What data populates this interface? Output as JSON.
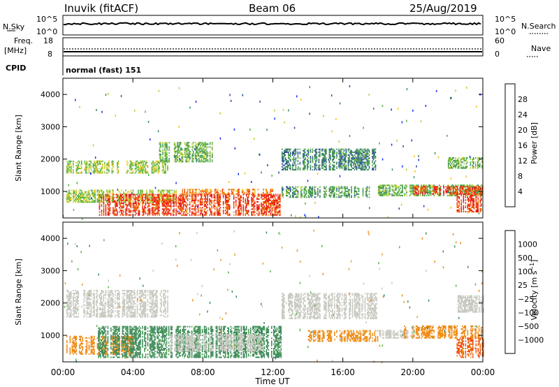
{
  "header": {
    "station": "Inuvik (fitACF)",
    "beam": "Beam 06",
    "date": "25/Aug/2019"
  },
  "noise_panel": {
    "left_label": "N.Sky",
    "left_ticks": [
      "10^5",
      "10^0"
    ],
    "right_label": "N.Search",
    "right_ticks": [
      "10^5",
      "10^0"
    ]
  },
  "freq_panel": {
    "left_label_line1": "Freq.",
    "left_label_line2": "[MHz]",
    "left_ticks": [
      "18",
      "8"
    ],
    "right_label": "Nave",
    "right_ticks": [
      "60",
      "0"
    ]
  },
  "cpid_panel": {
    "label": "CPID",
    "value": "normal (fast) 151"
  },
  "colors": {
    "power_scale": [
      "#1a2bff",
      "#2a4e9a",
      "#3d8a5a",
      "#53b047",
      "#b8cf3a",
      "#f2c419",
      "#f08a12",
      "#ef4a10",
      "#e81010"
    ],
    "velocity_scale": [
      "#e81010",
      "#ef4a10",
      "#f08a12",
      "#e0a033",
      "#c8c8c0",
      "#c8c8c0",
      "#59b54a",
      "#3d8a5a",
      "#2a4e9a",
      "#1a2bff"
    ]
  },
  "chart_data": [
    {
      "type": "heatmap",
      "title": "",
      "xlabel": "Time UT",
      "ylabel": "Slant Range [km]",
      "x_ticks": [
        "00:00",
        "04:00",
        "08:00",
        "12:00",
        "16:00",
        "20:00",
        "00:00"
      ],
      "y_ticks": [
        "1000",
        "2000",
        "3000",
        "4000"
      ],
      "xlim": [
        0,
        24
      ],
      "ylim": [
        180,
        4500
      ],
      "colorbar": {
        "label": "Power [dB]",
        "ticks": [
          "4",
          "8",
          "12",
          "16",
          "20",
          "24",
          "28"
        ],
        "range": [
          0,
          30
        ]
      },
      "regions": [
        {
          "t0": 0.2,
          "t1": 6.5,
          "r0": 650,
          "r1": 1050,
          "value": 14
        },
        {
          "t0": 2.0,
          "t1": 12.5,
          "r0": 250,
          "r1": 900,
          "value": 26
        },
        {
          "t0": 6.8,
          "t1": 12.0,
          "r0": 900,
          "r1": 1080,
          "value": 22
        },
        {
          "t0": 0.2,
          "t1": 6.0,
          "r0": 1550,
          "r1": 1950,
          "value": 14
        },
        {
          "t0": 12.5,
          "t1": 18.0,
          "r0": 1650,
          "r1": 2300,
          "value": 8
        },
        {
          "t0": 12.5,
          "t1": 17.5,
          "r0": 800,
          "r1": 1150,
          "value": 10
        },
        {
          "t0": 18.0,
          "t1": 24.0,
          "r0": 850,
          "r1": 1200,
          "value": 12
        },
        {
          "t0": 20.0,
          "t1": 24.0,
          "r0": 900,
          "r1": 1150,
          "value": 26
        },
        {
          "t0": 22.0,
          "t1": 24.0,
          "r0": 1700,
          "r1": 2050,
          "value": 12
        },
        {
          "t0": 22.5,
          "t1": 24.0,
          "r0": 350,
          "r1": 900,
          "value": 26
        },
        {
          "t0": 5.5,
          "t1": 8.5,
          "r0": 1900,
          "r1": 2500,
          "value": 12
        }
      ]
    },
    {
      "type": "heatmap",
      "title": "",
      "xlabel": "Time UT",
      "ylabel": "Slant Range [km]",
      "x_ticks": [
        "00:00",
        "04:00",
        "08:00",
        "12:00",
        "16:00",
        "20:00",
        "00:00"
      ],
      "y_ticks": [
        "1000",
        "2000",
        "3000",
        "4000"
      ],
      "xlim": [
        0,
        24
      ],
      "ylim": [
        180,
        4500
      ],
      "colorbar": {
        "label": "Velocity [m s^-1]",
        "ticks": [
          "1000",
          "500",
          "100",
          "25",
          "−25",
          "−100",
          "−500",
          "−1000"
        ]
      },
      "regions": [
        {
          "t0": 0.2,
          "t1": 6.0,
          "r0": 1550,
          "r1": 2400,
          "value": 0
        },
        {
          "t0": 0.2,
          "t1": 4.0,
          "r0": 400,
          "r1": 950,
          "value": -300
        },
        {
          "t0": 2.0,
          "t1": 12.5,
          "r0": 300,
          "r1": 1250,
          "value": 150
        },
        {
          "t0": 6.0,
          "t1": 11.5,
          "r0": 500,
          "r1": 1000,
          "value": 0
        },
        {
          "t0": 12.5,
          "t1": 18.0,
          "r0": 1500,
          "r1": 2300,
          "value": 0
        },
        {
          "t0": 14.0,
          "t1": 18.0,
          "r0": 800,
          "r1": 1150,
          "value": -150
        },
        {
          "t0": 18.0,
          "t1": 20.0,
          "r0": 900,
          "r1": 1150,
          "value": 0
        },
        {
          "t0": 19.5,
          "t1": 24.0,
          "r0": 900,
          "r1": 1300,
          "value": -300
        },
        {
          "t0": 22.5,
          "t1": 24.0,
          "r0": 300,
          "r1": 900,
          "value": -600
        },
        {
          "t0": 22.5,
          "t1": 24.0,
          "r0": 1700,
          "r1": 2200,
          "value": 0
        }
      ]
    }
  ]
}
